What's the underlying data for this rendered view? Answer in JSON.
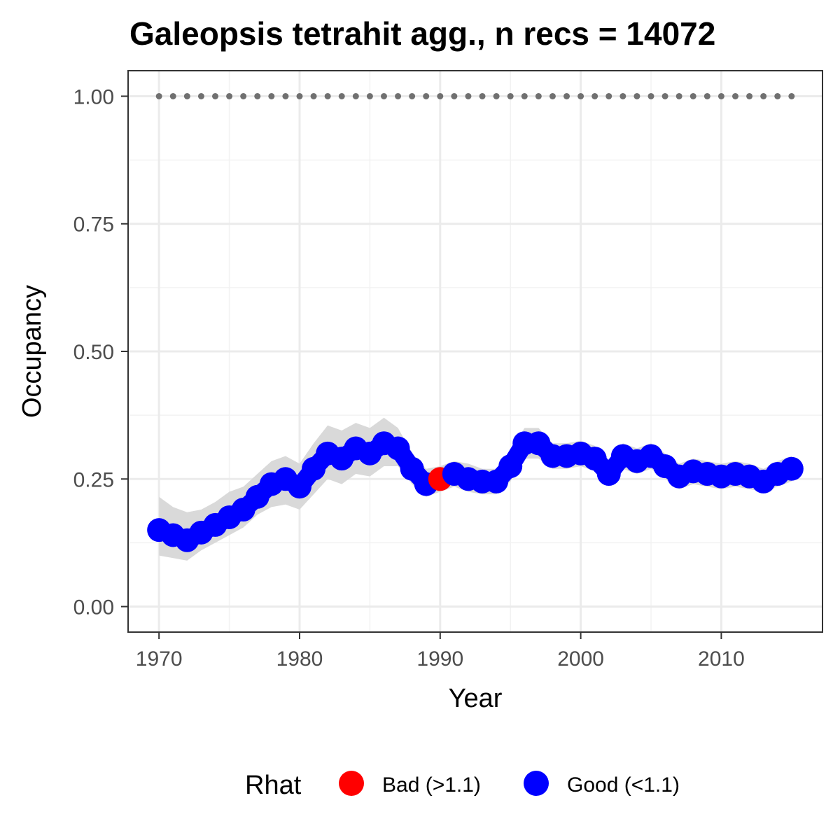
{
  "chart_data": {
    "type": "line",
    "title": "Galeopsis tetrahit agg., n recs = 14072",
    "xlabel": "Year",
    "ylabel": "Occupancy",
    "xlim": [
      1967.8,
      2017.2
    ],
    "ylim": [
      -0.05,
      1.05
    ],
    "x_ticks": [
      1970,
      1980,
      1990,
      2000,
      2010
    ],
    "x_tick_labels": [
      "1970",
      "1980",
      "1990",
      "2000",
      "2010"
    ],
    "y_ticks": [
      0,
      0.25,
      0.5,
      0.75,
      1.0
    ],
    "y_tick_labels": [
      "0.00",
      "0.25",
      "0.50",
      "0.75",
      "1.00"
    ],
    "grid": true,
    "legend": {
      "title": "Rhat",
      "position": "bottom",
      "entries": [
        {
          "label": "Bad (>1.1)",
          "color": "#ff0000"
        },
        {
          "label": "Good (<1.1)",
          "color": "#0000ff"
        }
      ]
    },
    "colors": {
      "good": "#0000ff",
      "bad": "#ff0000",
      "ribbon": "#d9d9d9",
      "reference_dots": "#707070"
    },
    "reference_line": {
      "y": 1.0,
      "style": "dotted"
    },
    "series": [
      {
        "x": [
          1970,
          1971,
          1972,
          1973,
          1974,
          1975,
          1976,
          1977,
          1978,
          1979,
          1980,
          1981,
          1982,
          1983,
          1984,
          1985,
          1986,
          1987,
          1988,
          1989,
          1990,
          1991,
          1992,
          1993,
          1994,
          1995,
          1996,
          1997,
          1998,
          1999,
          2000,
          2001,
          2002,
          2003,
          2004,
          2005,
          2006,
          2007,
          2008,
          2009,
          2010,
          2011,
          2012,
          2013,
          2014,
          2015
        ],
        "y": [
          0.15,
          0.14,
          0.13,
          0.145,
          0.16,
          0.175,
          0.19,
          0.215,
          0.24,
          0.25,
          0.235,
          0.27,
          0.3,
          0.29,
          0.31,
          0.3,
          0.32,
          0.31,
          0.27,
          0.24,
          0.25,
          0.26,
          0.25,
          0.245,
          0.245,
          0.275,
          0.32,
          0.32,
          0.295,
          0.295,
          0.3,
          0.29,
          0.26,
          0.295,
          0.285,
          0.295,
          0.275,
          0.255,
          0.265,
          0.26,
          0.255,
          0.26,
          0.255,
          0.245,
          0.26,
          0.27
        ],
        "lower": [
          0.1,
          0.095,
          0.09,
          0.11,
          0.125,
          0.14,
          0.155,
          0.18,
          0.195,
          0.2,
          0.19,
          0.22,
          0.25,
          0.24,
          0.26,
          0.255,
          0.275,
          0.275,
          0.24,
          0.215,
          0.225,
          0.235,
          0.225,
          0.22,
          0.22,
          0.245,
          0.29,
          0.29,
          0.27,
          0.27,
          0.275,
          0.265,
          0.24,
          0.27,
          0.26,
          0.27,
          0.25,
          0.23,
          0.24,
          0.235,
          0.23,
          0.235,
          0.23,
          0.225,
          0.235,
          0.245
        ],
        "upper": [
          0.215,
          0.195,
          0.185,
          0.19,
          0.205,
          0.225,
          0.235,
          0.26,
          0.285,
          0.295,
          0.28,
          0.32,
          0.355,
          0.345,
          0.36,
          0.35,
          0.37,
          0.35,
          0.3,
          0.27,
          0.275,
          0.285,
          0.28,
          0.27,
          0.27,
          0.305,
          0.35,
          0.35,
          0.32,
          0.32,
          0.325,
          0.315,
          0.285,
          0.32,
          0.31,
          0.32,
          0.3,
          0.28,
          0.29,
          0.285,
          0.28,
          0.285,
          0.28,
          0.27,
          0.285,
          0.295
        ],
        "rhat": [
          "Good",
          "Good",
          "Good",
          "Good",
          "Good",
          "Good",
          "Good",
          "Good",
          "Good",
          "Good",
          "Good",
          "Good",
          "Good",
          "Good",
          "Good",
          "Good",
          "Good",
          "Good",
          "Good",
          "Good",
          "Bad",
          "Good",
          "Good",
          "Good",
          "Good",
          "Good",
          "Good",
          "Good",
          "Good",
          "Good",
          "Good",
          "Good",
          "Good",
          "Good",
          "Good",
          "Good",
          "Good",
          "Good",
          "Good",
          "Good",
          "Good",
          "Good",
          "Good",
          "Good",
          "Good",
          "Good"
        ]
      }
    ]
  }
}
